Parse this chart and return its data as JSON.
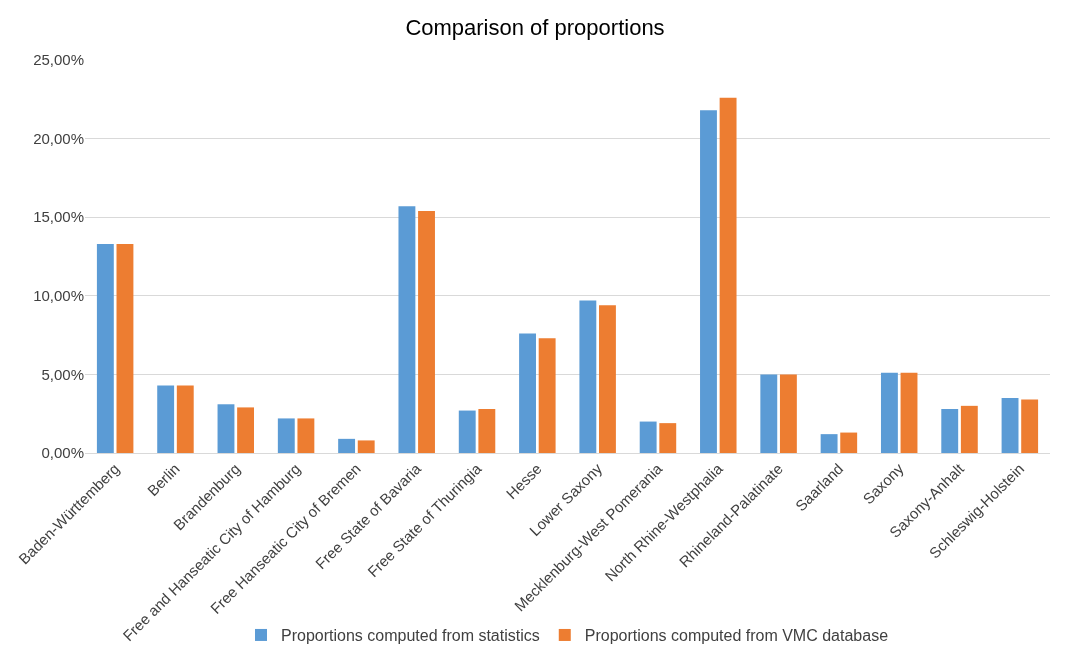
{
  "chart_data": {
    "type": "bar",
    "title": "Comparison of proportions",
    "categories": [
      "Baden-Württemberg",
      "Berlin",
      "Brandenburg",
      "Free and Hanseatic City of Hamburg",
      "Free Hanseatic City of Bremen",
      "Free State of Bavaria",
      "Free State of Thuringia",
      "Hesse",
      "Lower Saxony",
      "Mecklenburg-West Pomerania",
      "North Rhine-Westphalia",
      "Rhineland-Palatinate",
      "Saarland",
      "Saxony",
      "Saxony-Anhalt",
      "Schleswig-Holstein"
    ],
    "series": [
      {
        "name": "Proportions computed from statistics",
        "color": "#5b9bd5",
        "values": [
          13.3,
          4.3,
          3.1,
          2.2,
          0.9,
          15.7,
          2.7,
          7.6,
          9.7,
          2.0,
          21.8,
          5.0,
          1.2,
          5.1,
          2.8,
          3.5
        ]
      },
      {
        "name": "Proportions computed from VMC database",
        "color": "#ed7d31",
        "values": [
          13.3,
          4.3,
          2.9,
          2.2,
          0.8,
          15.4,
          2.8,
          7.3,
          9.4,
          1.9,
          22.6,
          5.0,
          1.3,
          5.1,
          3.0,
          3.4
        ]
      }
    ],
    "ylim": [
      0,
      25
    ],
    "yticks": [
      {
        "value": 0,
        "label": "0,00%"
      },
      {
        "value": 5,
        "label": "5,00%"
      },
      {
        "value": 10,
        "label": "10,00%"
      },
      {
        "value": 15,
        "label": "15,00%"
      },
      {
        "value": 20,
        "label": "20,00%"
      },
      {
        "value": 25,
        "label": "25,00%"
      }
    ],
    "grid": "y",
    "legend": "bottom"
  }
}
